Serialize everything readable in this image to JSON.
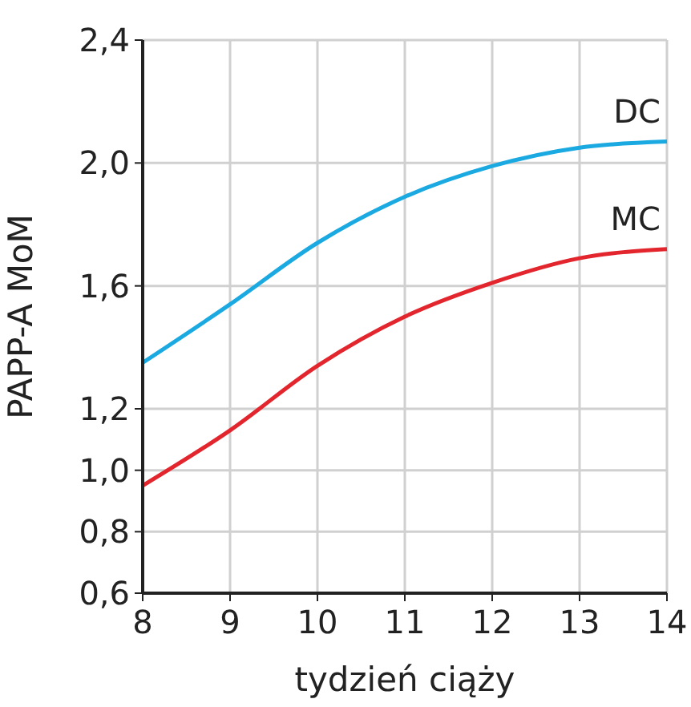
{
  "chart_data": {
    "type": "line",
    "xlabel": "tydzień ciąży",
    "ylabel": "PAPP-A MoM",
    "x": [
      8,
      9,
      10,
      11,
      12,
      13,
      14
    ],
    "series": [
      {
        "name": "DC",
        "color": "#1ba9e1",
        "values": [
          1.35,
          1.54,
          1.74,
          1.89,
          1.99,
          2.05,
          2.07
        ]
      },
      {
        "name": "MC",
        "color": "#e3262d",
        "values": [
          0.95,
          1.13,
          1.34,
          1.5,
          1.61,
          1.69,
          1.72
        ]
      }
    ],
    "xlim": [
      8,
      14
    ],
    "xticks": [
      8,
      9,
      10,
      11,
      12,
      13,
      14
    ],
    "ylim": [
      0.6,
      2.4
    ],
    "yticks": [
      {
        "value": 0.6,
        "label": "0,6"
      },
      {
        "value": 0.8,
        "label": "0,8"
      },
      {
        "value": 1.0,
        "label": "1,0"
      },
      {
        "value": 1.2,
        "label": "1,2"
      },
      {
        "value": 1.6,
        "label": "1,6"
      },
      {
        "value": 2.0,
        "label": "2,0"
      },
      {
        "value": 2.4,
        "label": "2,4"
      }
    ],
    "grid": true,
    "marker": "none",
    "line_style": "solid"
  }
}
